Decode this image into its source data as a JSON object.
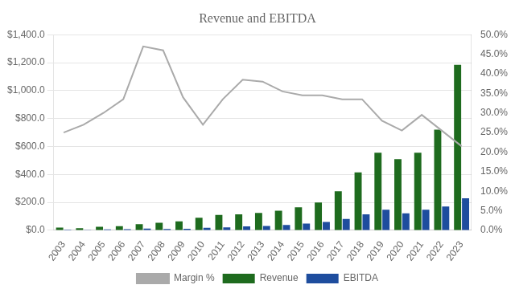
{
  "chart_data": {
    "type": "bar",
    "title": "Revenue and EBITDA",
    "categories": [
      "2003",
      "2004",
      "2005",
      "2006",
      "2007",
      "2008",
      "2009",
      "2010",
      "2011",
      "2012",
      "2013",
      "2014",
      "2015",
      "2016",
      "2017",
      "2018",
      "2019",
      "2020",
      "2021",
      "2022",
      "2023"
    ],
    "series": [
      {
        "name": "Revenue",
        "type": "bar",
        "color": "#1e6b1e",
        "values": [
          20,
          15,
          25,
          30,
          45,
          55,
          65,
          90,
          110,
          115,
          125,
          140,
          165,
          200,
          280,
          415,
          555,
          510,
          555,
          720,
          1185
        ]
      },
      {
        "name": "EBITDA",
        "type": "bar",
        "color": "#1e4d9e",
        "values": [
          5,
          4,
          7,
          9,
          13,
          10,
          12,
          18,
          22,
          28,
          32,
          38,
          48,
          60,
          82,
          115,
          148,
          122,
          148,
          170,
          230
        ]
      },
      {
        "name": "Margin %",
        "type": "line",
        "axis": "y2",
        "color": "#aaaaaa",
        "values": [
          25.0,
          27.0,
          30.0,
          33.5,
          47.0,
          46.0,
          34.0,
          27.0,
          33.5,
          38.5,
          38.0,
          35.5,
          34.5,
          34.5,
          33.5,
          33.5,
          28.0,
          25.5,
          29.5,
          25.5,
          21.5
        ]
      }
    ],
    "ylim": [
      0,
      1400
    ],
    "yticks": [
      {
        "value": 0,
        "label": "$0.0"
      },
      {
        "value": 200,
        "label": "$200.0"
      },
      {
        "value": 400,
        "label": "$400.0"
      },
      {
        "value": 600,
        "label": "$600.0"
      },
      {
        "value": 800,
        "label": "$800.0"
      },
      {
        "value": 1000,
        "label": "$1,000.0"
      },
      {
        "value": 1200,
        "label": "$1,200.0"
      },
      {
        "value": 1400,
        "label": "$1,400.0"
      }
    ],
    "y2lim": [
      0,
      50
    ],
    "y2ticks": [
      {
        "value": 0,
        "label": "0.0%"
      },
      {
        "value": 5,
        "label": "5.0%"
      },
      {
        "value": 10,
        "label": "10.0%"
      },
      {
        "value": 15,
        "label": "15.0%"
      },
      {
        "value": 20,
        "label": "20.0%"
      },
      {
        "value": 25,
        "label": "25.0%"
      },
      {
        "value": 30,
        "label": "30.0%"
      },
      {
        "value": 35,
        "label": "35.0%"
      },
      {
        "value": 40,
        "label": "40.0%"
      },
      {
        "value": 45,
        "label": "45.0%"
      },
      {
        "value": 50,
        "label": "50.0%"
      }
    ],
    "grid": true,
    "legend": "bottom"
  }
}
